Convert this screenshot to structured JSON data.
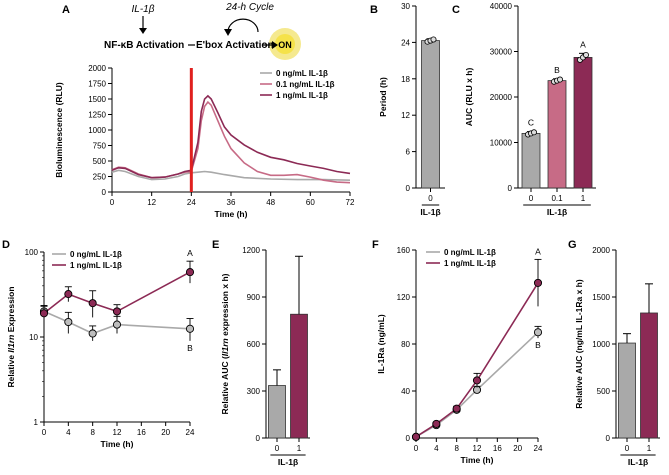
{
  "colors": {
    "c0": "#a9a9a9",
    "c01": "#c76b86",
    "c1": "#8c2a55",
    "nfkb": "#2f9a94",
    "ebox": "#7a4a73",
    "highlight": "#f1e26a",
    "redline": "#e0201f"
  },
  "schematic": {
    "il1b": "IL-1β",
    "cycle": "24-h Cycle",
    "nfkb": "NF-κB Activation",
    "ebox": "E'box Activation",
    "on": "ON"
  },
  "chart_data": [
    {
      "id": "A",
      "type": "line",
      "xlabel": "Time (h)",
      "ylabel": "Bioluminescence (RLU)",
      "xlim": [
        0,
        72
      ],
      "ylim": [
        0,
        2000
      ],
      "xticks": [
        0,
        12,
        24,
        36,
        48,
        60,
        72
      ],
      "yticks": [
        0,
        250,
        500,
        750,
        1000,
        1250,
        1500,
        1750,
        2000
      ],
      "vline": 24,
      "legend": [
        "0 ng/mL IL-1β",
        "0.1 ng/mL IL-1β",
        "1 ng/mL IL-1β"
      ],
      "series": [
        {
          "name": "0 ng/mL IL-1β",
          "x": [
            0,
            2,
            4,
            6,
            8,
            12,
            16,
            20,
            22,
            24,
            26,
            28,
            30,
            34,
            40,
            48,
            56,
            64,
            72
          ],
          "y": [
            320,
            350,
            330,
            290,
            250,
            200,
            210,
            250,
            290,
            310,
            320,
            330,
            320,
            280,
            230,
            210,
            200,
            200,
            190
          ]
        },
        {
          "name": "0.1 ng/mL IL-1β",
          "x": [
            0,
            2,
            4,
            6,
            8,
            12,
            16,
            20,
            22,
            24,
            26,
            27,
            28,
            29,
            30,
            32,
            34,
            36,
            40,
            44,
            48,
            52,
            56,
            60,
            64,
            68,
            72
          ],
          "y": [
            360,
            400,
            390,
            340,
            290,
            230,
            240,
            290,
            320,
            330,
            700,
            1150,
            1380,
            1450,
            1400,
            1150,
            900,
            700,
            470,
            330,
            270,
            270,
            280,
            240,
            190,
            160,
            150
          ]
        },
        {
          "name": "1 ng/mL IL-1β",
          "x": [
            0,
            2,
            4,
            6,
            8,
            12,
            16,
            20,
            22,
            24,
            26,
            27,
            28,
            29,
            30,
            32,
            34,
            36,
            40,
            44,
            48,
            52,
            56,
            60,
            64,
            68,
            72
          ],
          "y": [
            350,
            390,
            380,
            330,
            280,
            230,
            240,
            290,
            330,
            350,
            800,
            1300,
            1500,
            1550,
            1500,
            1280,
            1050,
            920,
            760,
            640,
            560,
            520,
            460,
            420,
            380,
            330,
            300
          ]
        }
      ]
    },
    {
      "id": "B",
      "type": "bar",
      "ylabel": "Period (h)",
      "xlabel": "IL-1β",
      "categories": [
        "0"
      ],
      "values": [
        24.3
      ],
      "errors": [
        0.3
      ],
      "ylim": [
        0,
        30
      ],
      "yticks": [
        0,
        6,
        12,
        18,
        24,
        30
      ]
    },
    {
      "id": "C",
      "type": "bar",
      "ylabel": "AUC (RLU x h)",
      "xlabel": "IL-1β",
      "categories": [
        "0",
        "0.1",
        "1"
      ],
      "values": [
        12000,
        23600,
        28700
      ],
      "errors": [
        400,
        400,
        900
      ],
      "letters": [
        "C",
        "B",
        "A"
      ],
      "ylim": [
        0,
        40000
      ],
      "yticks": [
        0,
        10000,
        20000,
        30000,
        40000
      ]
    },
    {
      "id": "D",
      "type": "line",
      "scale": "log",
      "xlabel": "Time (h)",
      "ylabel_prefix": "Relative ",
      "ylabel_italic": "Il1rn",
      "ylabel_suffix": " Expression",
      "xlim": [
        0,
        24
      ],
      "xticks": [
        0,
        4,
        8,
        12,
        16,
        20,
        24
      ],
      "ylim": [
        1,
        100
      ],
      "yticks": [
        1,
        10,
        100
      ],
      "legend": [
        "0 ng/mL IL-1β",
        "1 ng/mL IL-1β"
      ],
      "letters_top": "A",
      "letters_bottom": "B",
      "series": [
        {
          "name": "0 ng/mL IL-1β",
          "x": [
            0,
            4,
            8,
            12,
            24
          ],
          "y": [
            20,
            15,
            11,
            14,
            12.5
          ],
          "errors_up": [
            3.5,
            4.5,
            2.5,
            3.5,
            4
          ],
          "errors_down": [
            3,
            4,
            2,
            3,
            3.5
          ]
        },
        {
          "name": "1 ng/mL IL-1β",
          "x": [
            0,
            4,
            8,
            12,
            24
          ],
          "y": [
            19,
            32,
            25,
            20,
            58
          ],
          "errors_up": [
            4,
            7,
            10,
            4,
            20
          ],
          "errors_down": [
            3,
            6,
            8,
            3.5,
            15
          ]
        }
      ]
    },
    {
      "id": "E",
      "type": "bar",
      "ylabel_prefix": "Relative AUC (",
      "ylabel_italic": "Il1rn",
      "ylabel_suffix": " expression x h)",
      "xlabel": "IL-1β",
      "categories": [
        "0",
        "1"
      ],
      "values": [
        335,
        790
      ],
      "errors": [
        100,
        370
      ],
      "ylim": [
        0,
        1200
      ],
      "yticks": [
        0,
        300,
        600,
        900,
        1200
      ]
    },
    {
      "id": "F",
      "type": "line",
      "xlabel": "Time (h)",
      "ylabel": "IL-1Ra (ng/mL)",
      "xlim": [
        0,
        24
      ],
      "xticks": [
        0,
        4,
        8,
        12,
        16,
        20,
        24
      ],
      "ylim": [
        0,
        160
      ],
      "yticks": [
        0,
        40,
        80,
        120,
        160
      ],
      "legend": [
        "0 ng/mL IL-1β",
        "1 ng/mL IL-1β"
      ],
      "letters_top": "A",
      "letters_bottom": "B",
      "series": [
        {
          "name": "0 ng/mL IL-1β",
          "x": [
            0,
            4,
            8,
            12,
            24
          ],
          "y": [
            1,
            11,
            24,
            41,
            90
          ],
          "errors": [
            0.5,
            1.5,
            2,
            3,
            5
          ]
        },
        {
          "name": "1 ng/mL IL-1β",
          "x": [
            0,
            4,
            8,
            12,
            24
          ],
          "y": [
            1,
            12,
            25,
            49,
            132
          ],
          "errors": [
            0.5,
            1.5,
            2,
            6,
            20
          ]
        }
      ]
    },
    {
      "id": "G",
      "type": "bar",
      "ylabel": "Relative AUC (ng/mL IL-1Ra x h)",
      "xlabel": "IL-1β",
      "categories": [
        "0",
        "1"
      ],
      "values": [
        1010,
        1330
      ],
      "errors": [
        100,
        310
      ],
      "ylim": [
        0,
        2000
      ],
      "yticks": [
        0,
        500,
        1000,
        1500,
        2000
      ]
    }
  ]
}
